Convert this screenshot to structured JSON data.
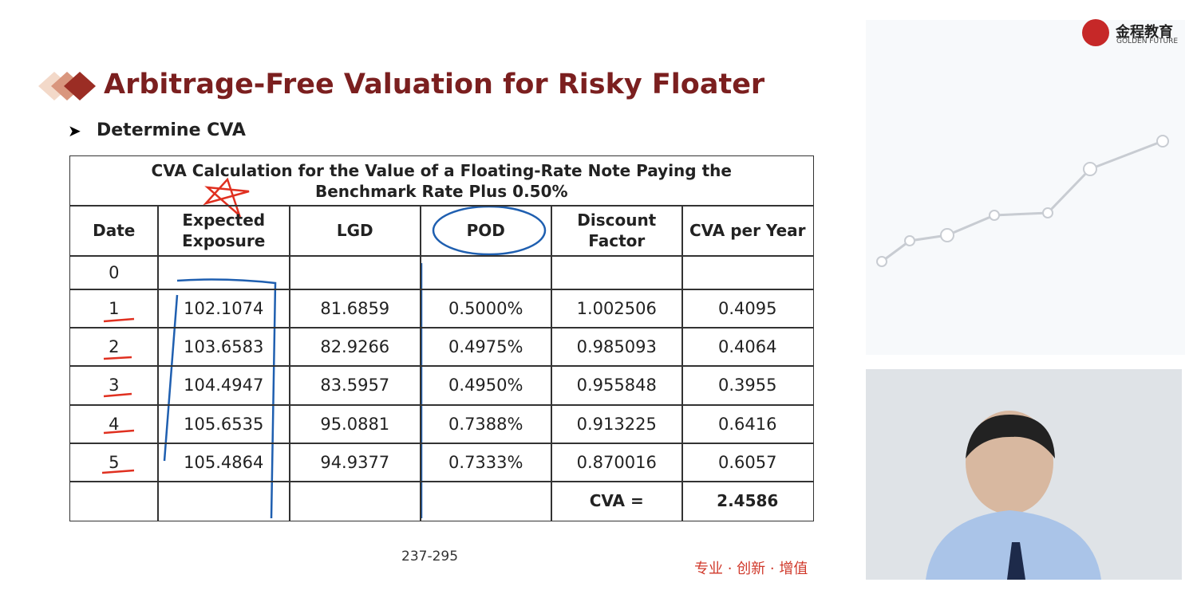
{
  "header": {
    "title": "Arbitrage-Free Valuation for Risky Floater",
    "bullet": "Determine CVA"
  },
  "logo": {
    "name": "金程教育",
    "tagline": "GOLDEN FUTURE"
  },
  "table": {
    "title": "CVA Calculation for the Value of a Floating-Rate Note Paying the Benchmark Rate Plus 0.50%",
    "columns": [
      "Date",
      "Expected Exposure",
      "LGD",
      "POD",
      "Discount Factor",
      "CVA per Year"
    ],
    "rows": [
      {
        "date": "0"
      },
      {
        "date": "1",
        "exposure": "102.1074",
        "lgd": "81.6859",
        "pod": "0.5000%",
        "discount": "1.002506",
        "cva": "0.4095"
      },
      {
        "date": "2",
        "exposure": "103.6583",
        "lgd": "82.9266",
        "pod": "0.4975%",
        "discount": "0.985093",
        "cva": "0.4064"
      },
      {
        "date": "3",
        "exposure": "104.4947",
        "lgd": "83.5957",
        "pod": "0.4950%",
        "discount": "0.955848",
        "cva": "0.3955"
      },
      {
        "date": "4",
        "exposure": "105.6535",
        "lgd": "95.0881",
        "pod": "0.7388%",
        "discount": "0.913225",
        "cva": "0.6416"
      },
      {
        "date": "5",
        "exposure": "105.4864",
        "lgd": "94.9377",
        "pod": "0.7333%",
        "discount": "0.870016",
        "cva": "0.6057"
      }
    ],
    "total": {
      "label": "CVA =",
      "value": "2.4586"
    }
  },
  "footer": {
    "page": "237-295",
    "slogan": "专业 · 创新 · 增值"
  }
}
